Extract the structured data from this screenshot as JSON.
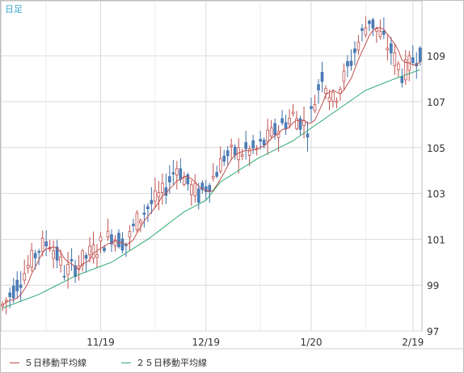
{
  "period_label": "日足",
  "legend": [
    {
      "label": "５日移動平均線",
      "color": "#c0504d"
    },
    {
      "label": "２５日移動平均線",
      "color": "#2eaa72"
    }
  ],
  "colors": {
    "up_fill": "#ffffff",
    "up_stroke": "#c0504d",
    "down_fill": "#4f81bd",
    "down_stroke": "#3f6fa8",
    "grid": "#d9d9d9",
    "axis_text": "#333333"
  },
  "chart_data": {
    "type": "candlestick",
    "y_ticks": [
      97,
      99,
      101,
      103,
      105,
      107,
      109
    ],
    "ylim": [
      97,
      111.4
    ],
    "x_ticks": [
      "11/19",
      "12/19",
      "1/20",
      "2/19"
    ],
    "x_tick_index": [
      27,
      56,
      85,
      113
    ],
    "n": 116,
    "anchors": [
      [
        0,
        98.1
      ],
      [
        5,
        99.3
      ],
      [
        10,
        100.6
      ],
      [
        13,
        100.9
      ],
      [
        17,
        99.6
      ],
      [
        20,
        99.8
      ],
      [
        25,
        100.5
      ],
      [
        30,
        101.2
      ],
      [
        34,
        100.8
      ],
      [
        37,
        101.8
      ],
      [
        40,
        102.4
      ],
      [
        44,
        103.0
      ],
      [
        48,
        104.2
      ],
      [
        51,
        103.4
      ],
      [
        54,
        102.9
      ],
      [
        58,
        103.7
      ],
      [
        61,
        104.6
      ],
      [
        65,
        104.8
      ],
      [
        70,
        104.9
      ],
      [
        75,
        105.7
      ],
      [
        80,
        106.4
      ],
      [
        84,
        105.9
      ],
      [
        88,
        108.2
      ],
      [
        91,
        107.0
      ],
      [
        95,
        108.4
      ],
      [
        98,
        109.6
      ],
      [
        101,
        110.6
      ],
      [
        104,
        109.9
      ],
      [
        107,
        109.2
      ],
      [
        110,
        108.2
      ],
      [
        113,
        108.8
      ],
      [
        115,
        109.2
      ]
    ],
    "ma25_anchors": [
      [
        0,
        98.0
      ],
      [
        10,
        98.6
      ],
      [
        20,
        99.4
      ],
      [
        30,
        100.0
      ],
      [
        40,
        101.0
      ],
      [
        50,
        102.2
      ],
      [
        56,
        102.7
      ],
      [
        60,
        103.5
      ],
      [
        70,
        104.5
      ],
      [
        80,
        105.3
      ],
      [
        90,
        106.4
      ],
      [
        100,
        107.5
      ],
      [
        108,
        108.0
      ],
      [
        115,
        108.4
      ]
    ]
  }
}
